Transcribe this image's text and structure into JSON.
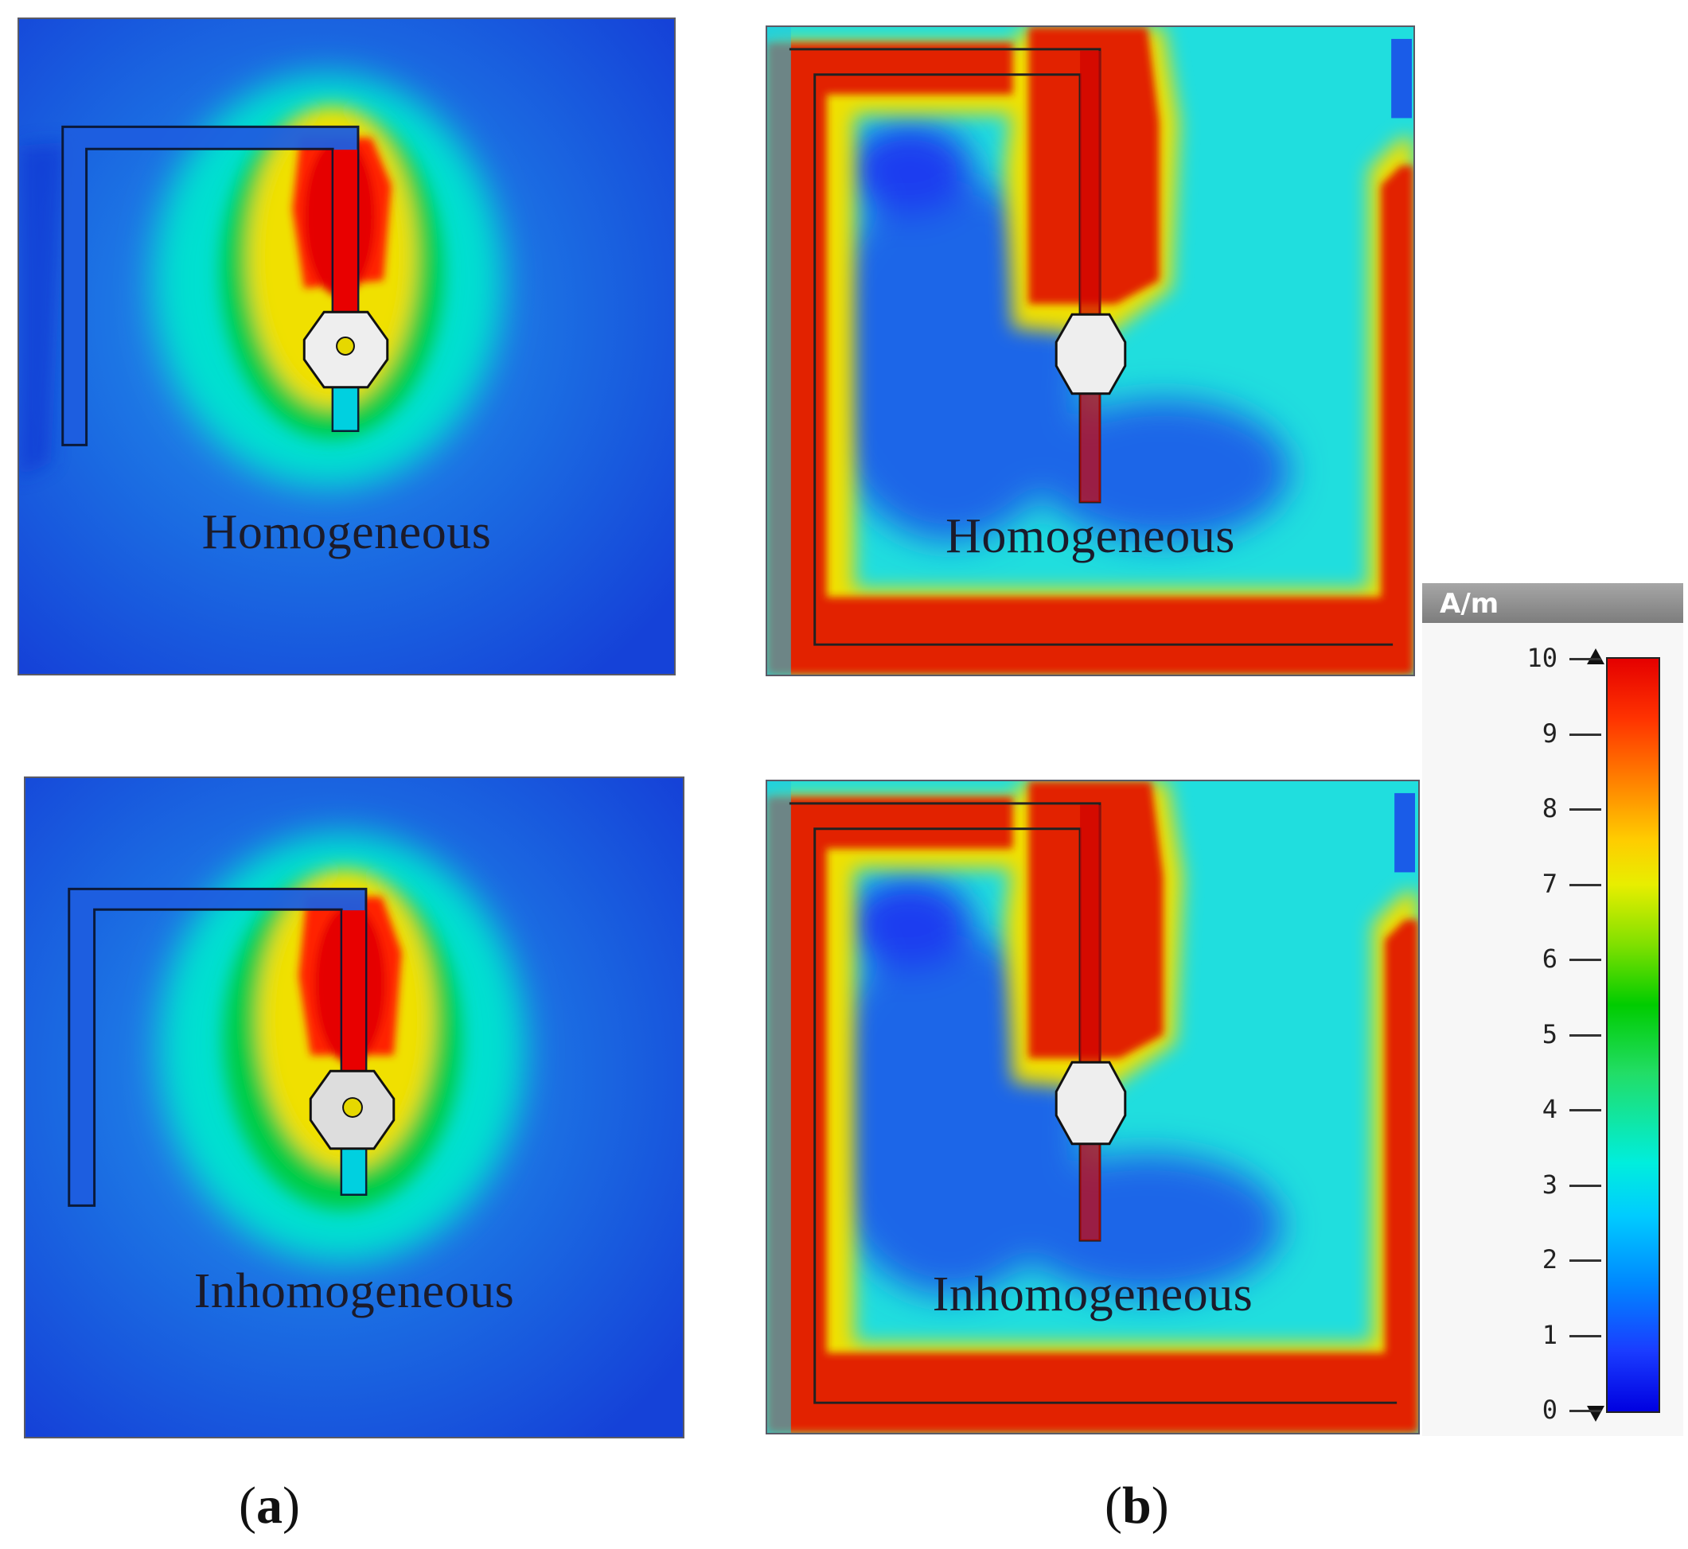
{
  "panels": [
    {
      "id": "a-top",
      "label": "Homogeneous"
    },
    {
      "id": "b-top",
      "label": "Homogeneous"
    },
    {
      "id": "a-bottom",
      "label": "Inhomogeneous"
    },
    {
      "id": "b-bottom",
      "label": "Inhomogeneous"
    }
  ],
  "captions": {
    "a": "a",
    "b": "b"
  },
  "colorbar": {
    "unit": "A/m",
    "min": 0,
    "max": 10,
    "ticks": [
      "10",
      "9",
      "8",
      "7",
      "6",
      "5",
      "4",
      "3",
      "2",
      "1",
      "0"
    ],
    "colors": [
      "#e50000",
      "#ff8800",
      "#e8ee00",
      "#00cc00",
      "#00eedd",
      "#0088ff",
      "#0000e0"
    ]
  }
}
